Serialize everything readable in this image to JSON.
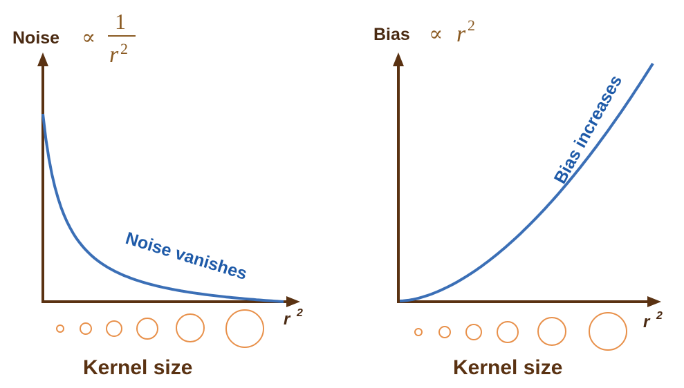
{
  "left_panel": {
    "y_label": "Noise",
    "proportional_symbol": "∝",
    "fraction_numerator": "1",
    "fraction_denominator_var": "r",
    "fraction_denominator_exp": "2",
    "x_label_var": "r",
    "x_label_exp": "2",
    "curve_label": "Noise vanishes",
    "kernel_label": "Kernel size",
    "kernel_circle_count": 6
  },
  "right_panel": {
    "y_label": "Bias",
    "proportional_symbol": "∝",
    "rhs_var": "r",
    "rhs_exp": "2",
    "x_label_var": "r",
    "x_label_exp": "2",
    "curve_label": "Bias increases",
    "kernel_label": "Kernel size",
    "kernel_circle_count": 6
  },
  "colors": {
    "axis": "#5a3212",
    "curve": "#3b6fb6",
    "curve_label": "#1e5aa8",
    "math": "#8a5a22",
    "kernel_circles": "#e8904a"
  }
}
